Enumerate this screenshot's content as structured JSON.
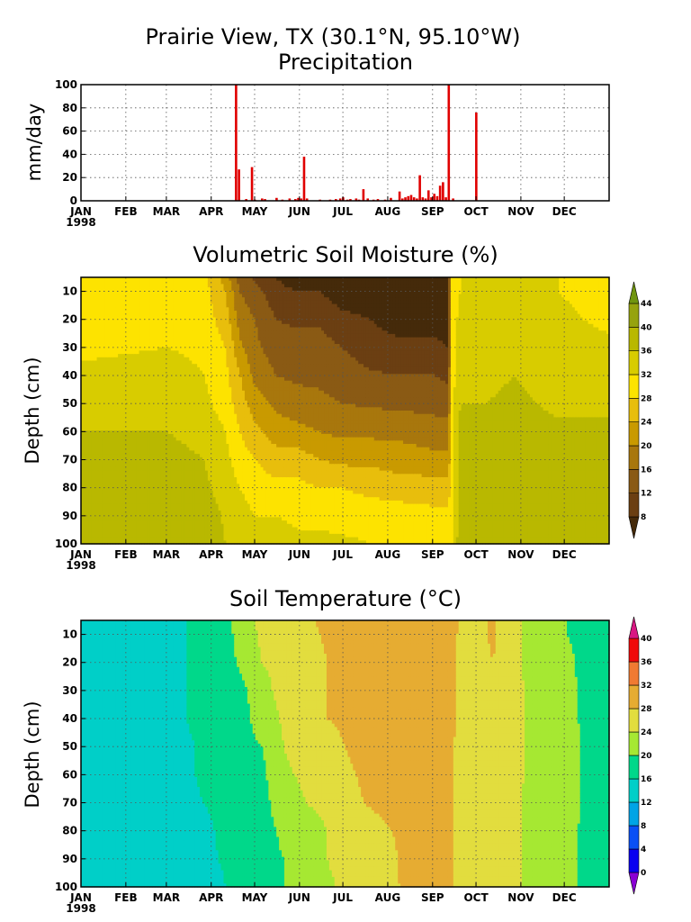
{
  "header": {
    "station": "Prairie View, TX (30.1°N, 95.10°W)"
  },
  "palettes": {
    "moisture": [
      "#452a0a",
      "#6b3f12",
      "#8a5a14",
      "#a8770d",
      "#c99a00",
      "#e8be0c",
      "#fde300",
      "#d8cc00",
      "#b9b800",
      "#96a30e",
      "#709510",
      "#1d9a28"
    ],
    "temperature": [
      "#8a00d4",
      "#0a00f0",
      "#0a50f5",
      "#00a4e6",
      "#00cfc8",
      "#00d88a",
      "#a6e832",
      "#e2dd3e",
      "#e6ac32",
      "#f07a32",
      "#f00a0a",
      "#d81883"
    ]
  },
  "chart_data": [
    {
      "type": "bar",
      "name": "precipitation",
      "title": "Precipitation",
      "ylabel": "mm/day",
      "ylim": [
        0,
        100
      ],
      "yticks": [
        0,
        20,
        40,
        60,
        80,
        100
      ],
      "xticks": [
        "JAN",
        "FEB",
        "MAR",
        "APR",
        "MAY",
        "JUN",
        "JUL",
        "AUG",
        "SEP",
        "OCT",
        "NOV",
        "DEC"
      ],
      "xyear": "1998",
      "grid": true,
      "color": "#e00000",
      "points": [
        {
          "day": 107,
          "value": 100
        },
        {
          "day": 109,
          "value": 27
        },
        {
          "day": 114,
          "value": 1.5
        },
        {
          "day": 118,
          "value": 29
        },
        {
          "day": 120,
          "value": 1
        },
        {
          "day": 125,
          "value": 2
        },
        {
          "day": 127,
          "value": 1.5
        },
        {
          "day": 135,
          "value": 2.5
        },
        {
          "day": 139,
          "value": 1
        },
        {
          "day": 144,
          "value": 2
        },
        {
          "day": 148,
          "value": 1.5
        },
        {
          "day": 150,
          "value": 2.5
        },
        {
          "day": 152,
          "value": 2
        },
        {
          "day": 154,
          "value": 38
        },
        {
          "day": 156,
          "value": 2
        },
        {
          "day": 165,
          "value": 1
        },
        {
          "day": 172,
          "value": 1
        },
        {
          "day": 176,
          "value": 1.5
        },
        {
          "day": 179,
          "value": 2
        },
        {
          "day": 181,
          "value": 3
        },
        {
          "day": 184,
          "value": 1
        },
        {
          "day": 186,
          "value": 1.5
        },
        {
          "day": 190,
          "value": 2
        },
        {
          "day": 192,
          "value": 1
        },
        {
          "day": 195,
          "value": 10
        },
        {
          "day": 198,
          "value": 2
        },
        {
          "day": 202,
          "value": 1
        },
        {
          "day": 205,
          "value": 1.5
        },
        {
          "day": 210,
          "value": 1
        },
        {
          "day": 214,
          "value": 2.5
        },
        {
          "day": 220,
          "value": 8
        },
        {
          "day": 222,
          "value": 2
        },
        {
          "day": 224,
          "value": 3
        },
        {
          "day": 226,
          "value": 4
        },
        {
          "day": 228,
          "value": 5
        },
        {
          "day": 230,
          "value": 3
        },
        {
          "day": 232,
          "value": 2
        },
        {
          "day": 234,
          "value": 22
        },
        {
          "day": 236,
          "value": 3
        },
        {
          "day": 238,
          "value": 2
        },
        {
          "day": 240,
          "value": 9
        },
        {
          "day": 242,
          "value": 3
        },
        {
          "day": 244,
          "value": 6
        },
        {
          "day": 246,
          "value": 4
        },
        {
          "day": 248,
          "value": 13
        },
        {
          "day": 250,
          "value": 16
        },
        {
          "day": 252,
          "value": 3
        },
        {
          "day": 254,
          "value": 100
        },
        {
          "day": 257,
          "value": 2
        },
        {
          "day": 273,
          "value": 76
        }
      ]
    },
    {
      "type": "heatmap",
      "name": "soil-moisture",
      "title": "Volumetric Soil Moisture (%)",
      "ylabel": "Depth (cm)",
      "ylim": [
        100,
        5
      ],
      "yticks": [
        10,
        20,
        30,
        40,
        50,
        60,
        70,
        80,
        90,
        100
      ],
      "xticks": [
        "JAN",
        "FEB",
        "MAR",
        "APR",
        "MAY",
        "JUN",
        "JUL",
        "AUG",
        "SEP",
        "OCT",
        "NOV",
        "DEC"
      ],
      "xyear": "1998",
      "grid": true,
      "legend": "right",
      "colorbar_levels": [
        8,
        12,
        16,
        20,
        24,
        28,
        32,
        36,
        40,
        44
      ],
      "column_days": [
        0,
        60,
        85,
        100,
        110,
        120,
        135,
        150,
        165,
        180,
        200,
        220,
        245,
        254,
        256,
        262,
        280,
        300,
        330,
        365
      ],
      "depth_levels": [
        5,
        10,
        20,
        30,
        40,
        50,
        60,
        70,
        80,
        90,
        100
      ],
      "values": [
        [
          30,
          30,
          30,
          31,
          33,
          35,
          36,
          37,
          37.5,
          37.5,
          37.5
        ],
        [
          30,
          30,
          31,
          32,
          34,
          35,
          36,
          37,
          37.5,
          37.5,
          37.5
        ],
        [
          29,
          29.5,
          30,
          31,
          32,
          33,
          35,
          36,
          37,
          38,
          38
        ],
        [
          22,
          24,
          26,
          28,
          29,
          30,
          32,
          33,
          34,
          35.5,
          36
        ],
        [
          14,
          16,
          18,
          21,
          24,
          26,
          28,
          30,
          32,
          34,
          35
        ],
        [
          11,
          14,
          16,
          17,
          19,
          22,
          25,
          28,
          30,
          32,
          34
        ],
        [
          8,
          9,
          12,
          14,
          16,
          19,
          22,
          26,
          29,
          32,
          34
        ],
        [
          6,
          8,
          11,
          14,
          15,
          18,
          21,
          26,
          29,
          31,
          33
        ],
        [
          6,
          8,
          11,
          14,
          15,
          17,
          20,
          24,
          28,
          31,
          33
        ],
        [
          5,
          6,
          9,
          12,
          14,
          16,
          19,
          23,
          28,
          30,
          33
        ],
        [
          5,
          6,
          8,
          10,
          12.5,
          15.5,
          19,
          23,
          27,
          30,
          32
        ],
        [
          5,
          5,
          6,
          9,
          12,
          15,
          19,
          22,
          26,
          30,
          32
        ],
        [
          5,
          5,
          6,
          9,
          12,
          14.5,
          18,
          21,
          26,
          29,
          31
        ],
        [
          5,
          5,
          6,
          8,
          11,
          14.5,
          18,
          21,
          26,
          29,
          31
        ],
        [
          30,
          30,
          30,
          30,
          30,
          30,
          30,
          30,
          30,
          30,
          30
        ],
        [
          32,
          32,
          33,
          34,
          35,
          36,
          36.5,
          37,
          37.5,
          38.5,
          39
        ],
        [
          33,
          33,
          34,
          35,
          35.5,
          36,
          37,
          37.5,
          38.5,
          39,
          39.5
        ],
        [
          34,
          34,
          35,
          35.5,
          36,
          36.5,
          37,
          38,
          39,
          39.5,
          39.5
        ],
        [
          32,
          32,
          33,
          34,
          35,
          35.5,
          36.5,
          37.5,
          38.5,
          39.5,
          39.5
        ],
        [
          30,
          30,
          31,
          33,
          34.5,
          35.5,
          36.5,
          37.5,
          38,
          39,
          39
        ]
      ]
    },
    {
      "type": "heatmap",
      "name": "soil-temperature",
      "title": "Soil Temperature (°C)",
      "ylabel": "Depth (cm)",
      "ylim": [
        100,
        5
      ],
      "yticks": [
        10,
        20,
        30,
        40,
        50,
        60,
        70,
        80,
        90,
        100
      ],
      "xticks": [
        "JAN",
        "FEB",
        "MAR",
        "APR",
        "MAY",
        "JUN",
        "JUL",
        "AUG",
        "SEP",
        "OCT",
        "NOV",
        "DEC"
      ],
      "xyear": "1998",
      "grid": true,
      "legend": "right",
      "colorbar_levels": [
        0,
        4,
        8,
        12,
        16,
        20,
        24,
        28,
        32,
        36,
        40
      ],
      "column_days": [
        0,
        30,
        60,
        85,
        100,
        115,
        125,
        140,
        155,
        170,
        195,
        225,
        255,
        265,
        285,
        300,
        318,
        335,
        348,
        365
      ],
      "depth_levels": [
        5,
        10,
        20,
        30,
        40,
        50,
        60,
        70,
        80,
        90,
        100
      ],
      "values": [
        [
          14,
          14,
          14,
          14,
          14,
          14,
          14,
          14,
          14,
          14,
          14
        ],
        [
          14,
          14,
          14,
          14,
          14,
          14,
          14,
          14,
          14,
          14,
          14
        ],
        [
          15,
          15,
          15,
          15,
          15,
          14.5,
          14.5,
          14.5,
          14,
          14,
          14
        ],
        [
          17,
          17,
          17,
          17,
          17,
          16.5,
          16.5,
          16,
          15,
          15,
          14
        ],
        [
          19,
          19,
          19,
          18.5,
          18.5,
          18,
          18,
          17.5,
          17,
          16.5,
          16
        ],
        [
          23,
          22,
          21,
          20,
          19.5,
          19,
          18.5,
          18,
          17.5,
          17,
          17
        ],
        [
          25,
          25,
          24,
          23,
          22,
          20,
          19,
          18.5,
          18,
          18,
          18
        ],
        [
          26,
          26,
          25,
          25,
          24.5,
          24,
          23.5,
          22.5,
          21,
          20,
          20
        ],
        [
          27,
          27,
          26,
          25.5,
          25,
          25,
          24.5,
          24,
          22,
          21,
          21
        ],
        [
          29,
          28.5,
          28,
          28,
          28,
          27,
          26,
          25,
          24,
          24,
          23.5
        ],
        [
          31,
          30.5,
          30,
          29.5,
          29,
          29,
          28.5,
          28,
          27,
          26,
          25.5
        ],
        [
          31.5,
          30.5,
          30,
          30,
          29.5,
          29,
          29,
          29,
          28.5,
          28.5,
          28.5
        ],
        [
          31,
          30,
          29.5,
          29,
          29,
          28.5,
          28.5,
          28.5,
          28.5,
          28.5,
          28.5
        ],
        [
          26,
          26,
          26.5,
          27,
          27,
          26.5,
          26.5,
          26,
          26,
          25.5,
          25.5
        ],
        [
          28.5,
          28.5,
          28,
          27.5,
          27,
          26.5,
          26,
          25.5,
          25,
          25,
          25
        ],
        [
          25,
          25,
          25,
          25,
          25,
          25,
          25,
          24.5,
          24.5,
          24.5,
          24.5
        ],
        [
          21,
          21,
          21.5,
          22,
          22,
          22,
          22,
          22.5,
          22.5,
          22.5,
          22.5
        ],
        [
          20,
          20,
          21,
          21.5,
          22,
          22,
          22,
          22,
          22,
          22,
          22
        ],
        [
          19,
          19,
          19,
          19,
          19,
          19.5,
          19.5,
          19.5,
          19,
          19,
          19
        ],
        [
          17,
          17.5,
          18,
          18.5,
          19,
          19,
          19,
          19,
          19,
          19,
          19
        ]
      ]
    }
  ]
}
